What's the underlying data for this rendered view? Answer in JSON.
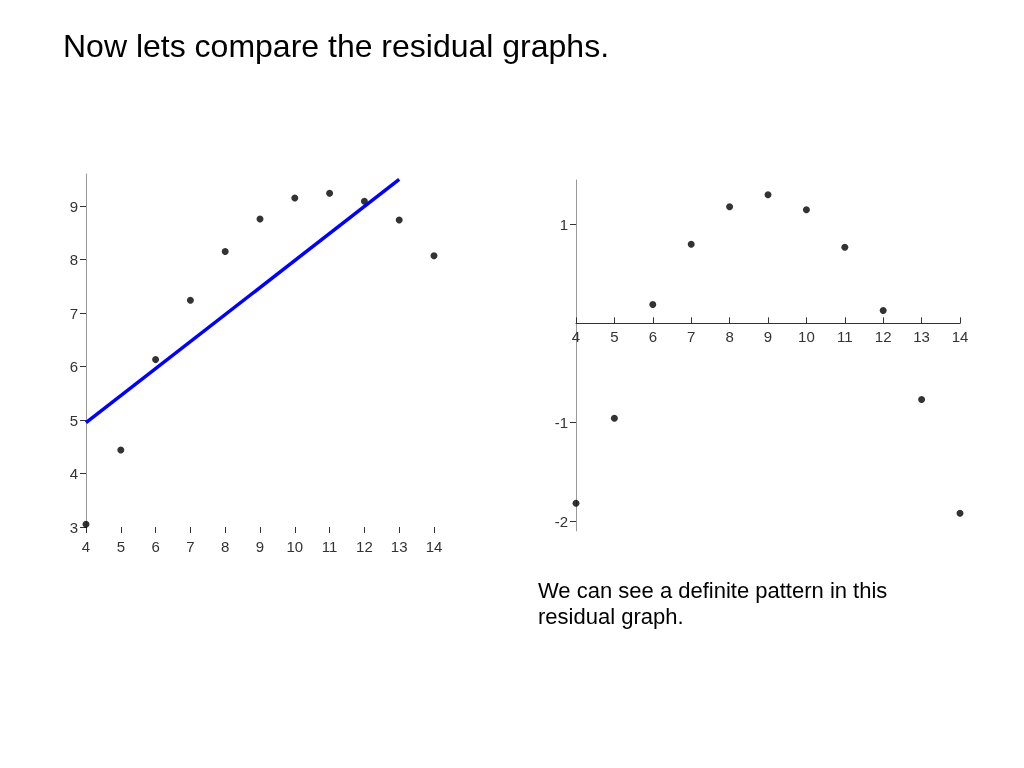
{
  "chart_data": [
    {
      "type": "scatter",
      "title": "Now lets compare the residual graphs.",
      "marker": "circle",
      "xlim": [
        4,
        14
      ],
      "ylim": [
        3,
        9.6
      ],
      "xticks": [
        4,
        5,
        6,
        7,
        8,
        9,
        10,
        11,
        12,
        13,
        14
      ],
      "yticks": [
        3,
        4,
        5,
        6,
        7,
        8,
        9
      ],
      "x": [
        4,
        5,
        6,
        7,
        8,
        9,
        10,
        11,
        12,
        13,
        14
      ],
      "series": [
        {
          "color": "#000000",
          "values": [
            3.05,
            4.44,
            6.13,
            7.24,
            8.15,
            8.76,
            9.15,
            9.24,
            9.09,
            8.74,
            8.07
          ]
        },
        {
          "type": "line",
          "color": "#0000ff",
          "marker": "none",
          "x": [
            4,
            13
          ],
          "values": [
            4.95,
            9.5
          ]
        }
      ]
    },
    {
      "type": "scatter",
      "marker": "circle",
      "xlim": [
        4,
        14
      ],
      "ylim": [
        -2.1,
        1.45
      ],
      "xticks": [
        4,
        5,
        6,
        7,
        8,
        9,
        10,
        11,
        12,
        13,
        14
      ],
      "yticks": [
        -2,
        -1,
        1
      ],
      "annotations": [
        "We can see a definite pattern in this residual graph."
      ],
      "x": [
        4,
        5,
        6,
        7,
        8,
        9,
        10,
        11,
        12,
        13,
        14
      ],
      "series": [
        {
          "color": "#000000",
          "values": [
            -1.82,
            -0.96,
            0.19,
            0.8,
            1.18,
            1.3,
            1.15,
            0.77,
            0.13,
            -0.77,
            -1.92
          ]
        }
      ]
    }
  ]
}
